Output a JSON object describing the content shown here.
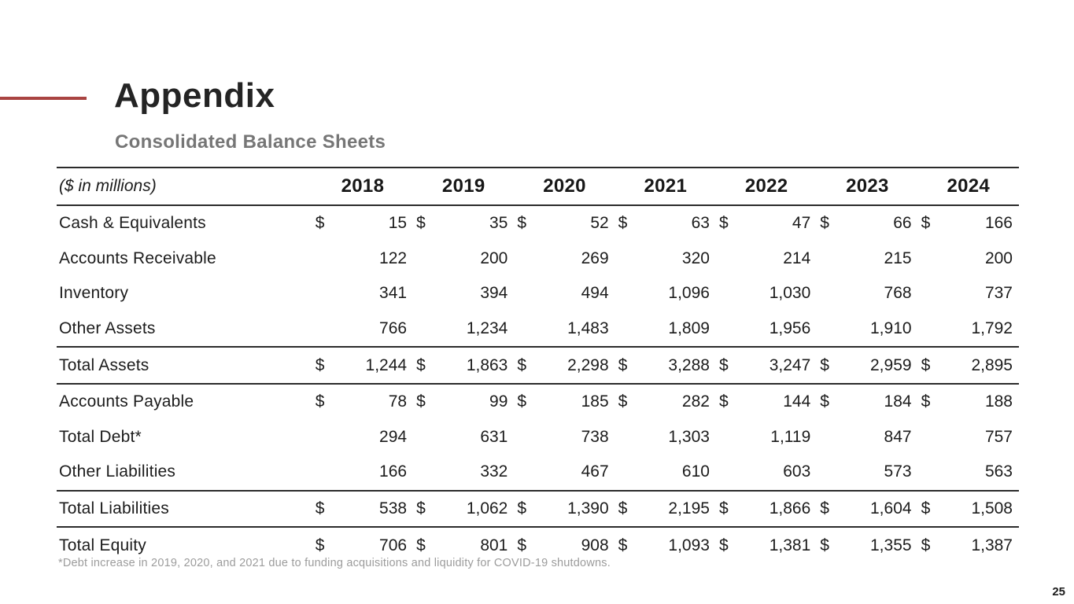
{
  "slide": {
    "title": "Appendix",
    "subtitle": "Consolidated Balance Sheets",
    "footnote": "*Debt increase in 2019, 2020, and 2021 due to funding acquisitions and liquidity for COVID-19 shutdowns.",
    "page_number": "25",
    "accent_color": "#A94442",
    "rule_color": "#2b2b2b"
  },
  "chart_data": {
    "type": "table",
    "title": "Consolidated Balance Sheets",
    "units_label": "($ in millions)",
    "currency_symbol": "$",
    "columns": [
      "2018",
      "2019",
      "2020",
      "2021",
      "2022",
      "2023",
      "2024"
    ],
    "rows": [
      {
        "label": "Cash & Equivalents",
        "dollar_sign": true,
        "total_rule": false,
        "values": [
          "15",
          "35",
          "52",
          "63",
          "47",
          "66",
          "166"
        ]
      },
      {
        "label": "Accounts Receivable",
        "dollar_sign": false,
        "total_rule": false,
        "values": [
          "122",
          "200",
          "269",
          "320",
          "214",
          "215",
          "200"
        ]
      },
      {
        "label": "Inventory",
        "dollar_sign": false,
        "total_rule": false,
        "values": [
          "341",
          "394",
          "494",
          "1,096",
          "1,030",
          "768",
          "737"
        ]
      },
      {
        "label": "Other Assets",
        "dollar_sign": false,
        "total_rule": false,
        "values": [
          "766",
          "1,234",
          "1,483",
          "1,809",
          "1,956",
          "1,910",
          "1,792"
        ]
      },
      {
        "label": "Total Assets",
        "dollar_sign": true,
        "total_rule": true,
        "values": [
          "1,244",
          "1,863",
          "2,298",
          "3,288",
          "3,247",
          "2,959",
          "2,895"
        ]
      },
      {
        "label": "Accounts Payable",
        "dollar_sign": true,
        "total_rule": false,
        "values": [
          "78",
          "99",
          "185",
          "282",
          "144",
          "184",
          "188"
        ]
      },
      {
        "label": "Total Debt*",
        "dollar_sign": false,
        "total_rule": false,
        "values": [
          "294",
          "631",
          "738",
          "1,303",
          "1,119",
          "847",
          "757"
        ]
      },
      {
        "label": "Other Liabilities",
        "dollar_sign": false,
        "total_rule": false,
        "values": [
          "166",
          "332",
          "467",
          "610",
          "603",
          "573",
          "563"
        ]
      },
      {
        "label": "Total Liabilities",
        "dollar_sign": true,
        "total_rule": true,
        "values": [
          "538",
          "1,062",
          "1,390",
          "2,195",
          "1,866",
          "1,604",
          "1,508"
        ]
      },
      {
        "label": "Total Equity",
        "dollar_sign": true,
        "total_rule": false,
        "values": [
          "706",
          "801",
          "908",
          "1,093",
          "1,381",
          "1,355",
          "1,387"
        ]
      }
    ]
  }
}
